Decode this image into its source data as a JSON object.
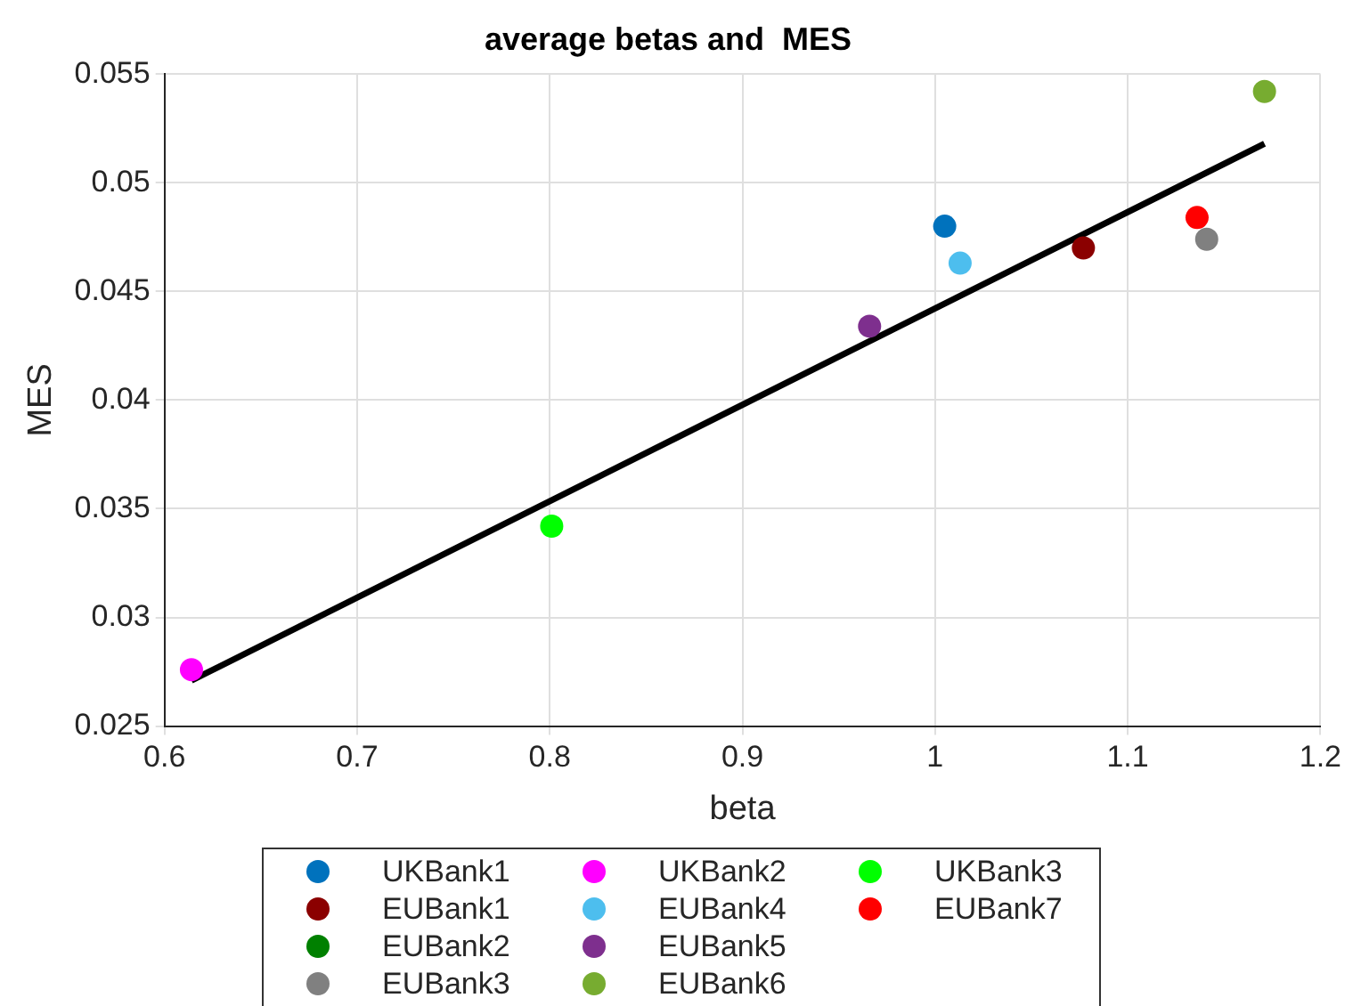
{
  "chart_data": {
    "type": "scatter",
    "title": "average betas and  MES",
    "xlabel": "beta",
    "ylabel": "MES",
    "xlim": [
      0.6,
      1.2
    ],
    "xticks": [
      0.6,
      0.7,
      0.8,
      0.9,
      1,
      1.1,
      1.2
    ],
    "ylim": [
      0.025,
      0.055
    ],
    "yticks": [
      0.025,
      0.03,
      0.035,
      0.04,
      0.045,
      0.05,
      0.055
    ],
    "grid": true,
    "legend": "bottom",
    "marker": "circle",
    "series": [
      {
        "name": "UKBank1",
        "color": "#0072bd",
        "x": [
          1.005
        ],
        "values": [
          0.048
        ]
      },
      {
        "name": "EUBank1",
        "color": "#8b0000",
        "x": [
          1.077
        ],
        "values": [
          0.047
        ]
      },
      {
        "name": "EUBank2",
        "color": "#008000",
        "x": [
          null
        ],
        "values": [
          null
        ]
      },
      {
        "name": "EUBank3",
        "color": "#808080",
        "x": [
          1.141
        ],
        "values": [
          0.0474
        ]
      },
      {
        "name": "UKBank2",
        "color": "#ff00ff",
        "x": [
          0.614
        ],
        "values": [
          0.0276
        ]
      },
      {
        "name": "EUBank4",
        "color": "#4dbeee",
        "x": [
          1.013
        ],
        "values": [
          0.0463
        ]
      },
      {
        "name": "EUBank5",
        "color": "#7e2f8e",
        "x": [
          0.966
        ],
        "values": [
          0.0434
        ]
      },
      {
        "name": "EUBank6",
        "color": "#77ac30",
        "x": [
          1.171
        ],
        "values": [
          0.0542
        ]
      },
      {
        "name": "UKBank3",
        "color": "#00ff00",
        "x": [
          0.801
        ],
        "values": [
          0.0342
        ]
      },
      {
        "name": "EUBank7",
        "color": "#ff0000",
        "x": [
          1.136
        ],
        "values": [
          0.0484
        ]
      },
      {
        "type": "line",
        "color": "#000000",
        "marker": "none",
        "line_style": "solid",
        "x": [
          0.614,
          1.171
        ],
        "values": [
          0.0271,
          0.0518
        ]
      }
    ]
  }
}
